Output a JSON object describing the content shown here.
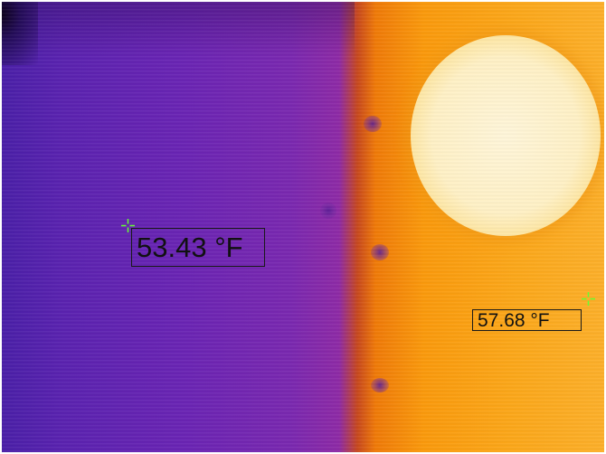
{
  "measurements": {
    "left_reading": "53.43 °F",
    "right_reading": "57.68 °F"
  },
  "colors": {
    "crosshair": "#66ff33",
    "label_text": "#111111",
    "cold_tone": "#5a22b0",
    "hot_tone": "#fca81a",
    "hot_disk": "#fff1c6"
  },
  "icons": {
    "left_marker": "crosshair-icon",
    "right_marker": "crosshair-icon"
  }
}
